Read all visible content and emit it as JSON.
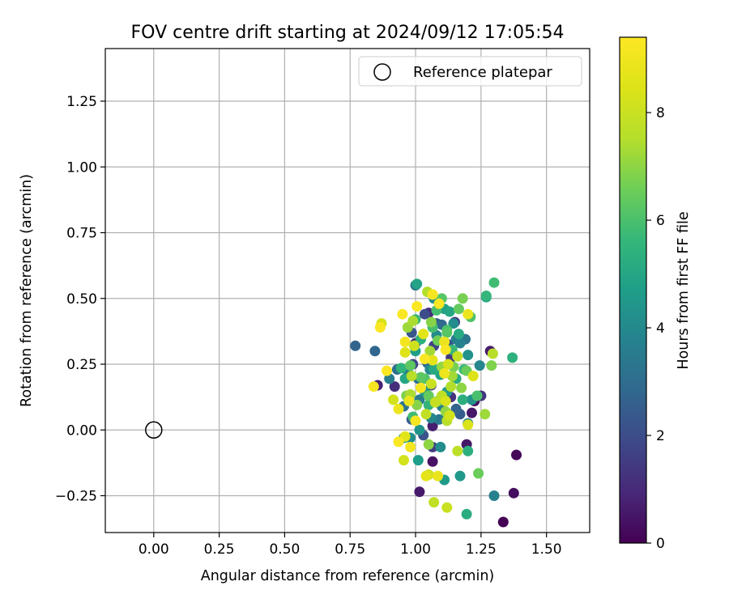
{
  "chart_data": {
    "type": "scatter",
    "title": "FOV centre drift starting at 2024/09/12 17:05:54",
    "xlabel": "Angular distance from reference (arcmin)",
    "ylabel": "Rotation from reference (arcmin)",
    "xlim": [
      -0.185,
      1.665
    ],
    "ylim": [
      -0.39,
      1.45
    ],
    "xticks": [
      0.0,
      0.25,
      0.5,
      0.75,
      1.0,
      1.25,
      1.5
    ],
    "xtick_labels": [
      "0.00",
      "0.25",
      "0.50",
      "0.75",
      "1.00",
      "1.25",
      "1.50"
    ],
    "yticks": [
      -0.25,
      0.0,
      0.25,
      0.5,
      0.75,
      1.0,
      1.25
    ],
    "ytick_labels": [
      "−0.25",
      "0.00",
      "0.25",
      "0.50",
      "0.75",
      "1.00",
      "1.25"
    ],
    "grid": true,
    "legend": {
      "placement": "top-right",
      "entries": [
        {
          "label": "Reference platepar",
          "marker": "open-circle"
        }
      ]
    },
    "reference_point": {
      "x": 0.0,
      "y": 0.0
    },
    "colorbar": {
      "label": "Hours from first FF file",
      "colormap": "viridis",
      "range": [
        0,
        9.4
      ],
      "ticks": [
        0,
        2,
        4,
        6,
        8
      ],
      "tick_labels": [
        "0",
        "2",
        "4",
        "6",
        "8"
      ]
    },
    "points": [
      [
        1.335,
        -0.35,
        0.0
      ],
      [
        1.375,
        -0.24,
        0.3
      ],
      [
        1.385,
        -0.095,
        0.2
      ],
      [
        1.195,
        -0.055,
        0.5
      ],
      [
        1.285,
        0.3,
        0.6
      ],
      [
        1.225,
        0.11,
        0.3
      ],
      [
        1.015,
        -0.235,
        0.6
      ],
      [
        1.065,
        -0.12,
        0.4
      ],
      [
        1.065,
        0.015,
        0.7
      ],
      [
        1.215,
        0.065,
        0.5
      ],
      [
        0.855,
        0.17,
        0.8
      ],
      [
        1.05,
        0.445,
        1.0
      ],
      [
        0.92,
        0.165,
        1.1
      ],
      [
        1.135,
        0.125,
        1.2
      ],
      [
        1.25,
        0.13,
        1.3
      ],
      [
        1.135,
        0.275,
        1.4
      ],
      [
        1.065,
        -0.065,
        1.5
      ],
      [
        1.15,
        0.41,
        1.6
      ],
      [
        0.99,
        0.25,
        1.8
      ],
      [
        1.07,
        0.32,
        1.7
      ],
      [
        1.035,
        0.44,
        2.0
      ],
      [
        1.03,
        -0.02,
        2.2
      ],
      [
        0.985,
        0.37,
        2.3
      ],
      [
        1.17,
        0.06,
        2.5
      ],
      [
        0.77,
        0.32,
        2.7
      ],
      [
        0.845,
        0.3,
        2.8
      ],
      [
        1.1,
        0.4,
        2.9
      ],
      [
        1.01,
        0.195,
        3.0
      ],
      [
        0.955,
        0.09,
        3.2
      ],
      [
        1.0,
        0.55,
        3.4
      ],
      [
        1.155,
        0.345,
        3.5
      ],
      [
        1.1,
        0.09,
        3.6
      ],
      [
        1.3,
        -0.25,
        3.7
      ],
      [
        1.2,
        0.025,
        3.8
      ],
      [
        1.245,
        0.245,
        3.9
      ],
      [
        1.055,
        0.23,
        4.0
      ],
      [
        1.095,
        -0.065,
        4.1
      ],
      [
        1.07,
        0.5,
        4.2
      ],
      [
        1.2,
        0.285,
        4.3
      ],
      [
        1.015,
        0.0,
        4.4
      ],
      [
        1.17,
        -0.175,
        4.5
      ],
      [
        1.11,
        -0.19,
        4.6
      ],
      [
        1.01,
        -0.115,
        4.7
      ],
      [
        1.27,
        0.505,
        4.8
      ],
      [
        1.095,
        0.21,
        4.9
      ],
      [
        1.13,
        0.45,
        5.0
      ],
      [
        1.165,
        0.365,
        5.1
      ],
      [
        1.195,
        -0.32,
        5.2
      ],
      [
        1.2,
        -0.08,
        5.3
      ],
      [
        1.37,
        0.275,
        5.4
      ],
      [
        0.945,
        0.235,
        5.5
      ],
      [
        1.0,
        0.42,
        5.6
      ],
      [
        1.185,
        0.23,
        5.7
      ],
      [
        1.3,
        0.56,
        5.8
      ],
      [
        1.08,
        0.455,
        5.9
      ],
      [
        1.12,
        0.38,
        6.0
      ],
      [
        1.21,
        0.43,
        6.1
      ],
      [
        1.1,
        0.5,
        6.2
      ],
      [
        1.02,
        0.2,
        6.3
      ],
      [
        1.165,
        0.46,
        6.4
      ],
      [
        1.24,
        -0.165,
        6.5
      ],
      [
        1.085,
        0.11,
        6.6
      ],
      [
        1.18,
        0.5,
        6.7
      ],
      [
        1.29,
        0.245,
        6.8
      ],
      [
        1.06,
        0.41,
        6.9
      ],
      [
        1.05,
        -0.055,
        7.0
      ],
      [
        1.115,
        0.07,
        7.1
      ],
      [
        1.265,
        0.06,
        7.2
      ],
      [
        1.14,
        0.205,
        7.3
      ],
      [
        0.98,
        0.135,
        7.4
      ],
      [
        1.045,
        0.525,
        7.5
      ],
      [
        1.12,
        0.035,
        7.6
      ],
      [
        1.16,
        -0.08,
        7.7
      ],
      [
        1.07,
        -0.275,
        7.8
      ],
      [
        1.075,
        0.105,
        7.9
      ],
      [
        1.12,
        -0.295,
        8.0
      ],
      [
        1.05,
        -0.17,
        8.1
      ],
      [
        0.955,
        -0.115,
        8.2
      ],
      [
        0.87,
        0.405,
        8.3
      ],
      [
        1.2,
        0.02,
        8.4
      ],
      [
        1.22,
        0.205,
        8.5
      ],
      [
        0.96,
        -0.025,
        8.6
      ],
      [
        1.04,
        -0.175,
        8.7
      ],
      [
        1.085,
        -0.175,
        8.8
      ],
      [
        0.935,
        0.08,
        8.9
      ],
      [
        1.11,
        0.215,
        9.0
      ],
      [
        0.98,
        -0.065,
        9.1
      ],
      [
        1.065,
        0.515,
        9.2
      ],
      [
        1.09,
        0.48,
        9.3
      ],
      [
        1.2,
        0.44,
        8.9
      ],
      [
        1.295,
        0.29,
        7.6
      ],
      [
        1.13,
        0.055,
        8.2
      ],
      [
        0.95,
        0.44,
        9.3
      ],
      [
        1.005,
        0.47,
        9.3
      ],
      [
        0.865,
        0.39,
        9.3
      ],
      [
        0.935,
        -0.045,
        9.3
      ],
      [
        0.89,
        0.225,
        9.3
      ],
      [
        1.02,
        0.16,
        9.2
      ],
      [
        1.0,
        0.035,
        9.2
      ],
      [
        1.115,
        0.305,
        9.3
      ],
      [
        1.035,
        0.27,
        9.3
      ],
      [
        0.84,
        0.165,
        9.2
      ],
      [
        0.96,
        0.335,
        9.1
      ],
      [
        0.975,
        0.11,
        8.9
      ],
      [
        1.11,
        0.335,
        8.8
      ],
      [
        1.065,
        0.265,
        8.7
      ],
      [
        1.03,
        0.365,
        8.6
      ],
      [
        0.96,
        0.295,
        8.5
      ],
      [
        1.115,
        0.11,
        8.4
      ],
      [
        1.125,
        0.25,
        8.3
      ],
      [
        0.915,
        0.115,
        8.2
      ],
      [
        0.995,
        0.32,
        8.1
      ],
      [
        1.06,
        0.175,
        8.0
      ],
      [
        1.16,
        0.28,
        7.9
      ],
      [
        1.04,
        0.06,
        7.8
      ],
      [
        1.1,
        0.13,
        7.7
      ],
      [
        0.985,
        0.205,
        7.6
      ],
      [
        1.135,
        0.165,
        7.5
      ],
      [
        0.99,
        0.415,
        7.4
      ],
      [
        1.055,
        0.3,
        7.3
      ],
      [
        0.97,
        0.39,
        7.2
      ],
      [
        1.1,
        0.24,
        7.1
      ],
      [
        1.175,
        0.16,
        7.0
      ],
      [
        1.005,
        0.095,
        6.9
      ],
      [
        0.965,
        0.13,
        6.8
      ],
      [
        1.145,
        0.24,
        6.7
      ],
      [
        1.085,
        0.34,
        6.6
      ],
      [
        1.195,
        0.225,
        6.5
      ],
      [
        1.05,
        0.13,
        6.4
      ],
      [
        0.98,
        0.245,
        6.3
      ],
      [
        1.12,
        0.37,
        6.2
      ],
      [
        1.035,
        0.195,
        6.1
      ],
      [
        1.235,
        0.13,
        6.0
      ],
      [
        1.065,
        0.39,
        5.9
      ],
      [
        0.99,
        0.05,
        5.8
      ],
      [
        1.14,
        0.305,
        5.7
      ],
      [
        1.27,
        0.51,
        5.6
      ],
      [
        1.05,
        0.095,
        5.5
      ],
      [
        1.02,
        0.345,
        5.4
      ],
      [
        1.18,
        0.115,
        5.3
      ],
      [
        1.155,
        0.195,
        5.2
      ],
      [
        1.07,
        0.23,
        5.1
      ],
      [
        0.96,
        0.195,
        5.0
      ],
      [
        1.005,
        0.555,
        4.9
      ],
      [
        1.11,
        0.46,
        4.8
      ],
      [
        1.0,
        0.3,
        4.7
      ],
      [
        1.12,
        0.145,
        4.6
      ],
      [
        0.955,
        -0.03,
        4.5
      ],
      [
        1.035,
        0.145,
        4.4
      ],
      [
        1.215,
        0.115,
        4.3
      ],
      [
        0.98,
        -0.03,
        4.2
      ],
      [
        1.145,
        0.405,
        4.1
      ],
      [
        1.08,
        0.36,
        4.0
      ],
      [
        1.06,
        0.045,
        3.9
      ],
      [
        1.17,
        0.33,
        3.8
      ],
      [
        0.97,
        0.225,
        3.7
      ],
      [
        0.9,
        0.195,
        3.6
      ],
      [
        1.015,
        0.115,
        3.5
      ],
      [
        1.09,
        0.04,
        3.4
      ],
      [
        1.19,
        0.345,
        3.3
      ],
      [
        0.93,
        0.23,
        3.1
      ],
      [
        1.045,
        0.255,
        2.9
      ],
      [
        1.155,
        0.08,
        2.7
      ],
      [
        1.08,
        0.405,
        2.5
      ],
      [
        0.985,
        0.04,
        2.4
      ],
      [
        1.125,
        0.325,
        2.1
      ],
      [
        1.06,
        0.17,
        1.9
      ],
      [
        1.0,
        0.33,
        1.3
      ]
    ]
  }
}
